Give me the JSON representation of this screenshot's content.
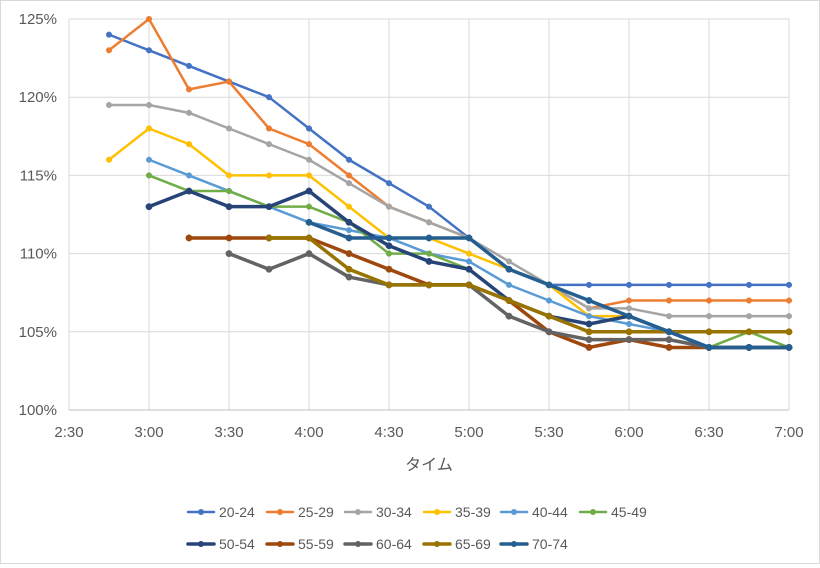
{
  "chart_data": {
    "type": "line",
    "title": "",
    "xlabel": "タイム",
    "ylabel": "",
    "x_ticks": [
      "2:30",
      "3:00",
      "3:30",
      "4:00",
      "4:30",
      "5:00",
      "5:30",
      "6:00",
      "6:30",
      "7:00"
    ],
    "y_ticks": [
      "100%",
      "105%",
      "110%",
      "115%",
      "120%",
      "125%"
    ],
    "x_range_minutes": [
      150,
      420
    ],
    "y_range_percent": [
      100,
      125
    ],
    "x_minutes": [
      165,
      180,
      195,
      210,
      225,
      240,
      255,
      270,
      285,
      300,
      315,
      330,
      345,
      360,
      375,
      390,
      405,
      420
    ],
    "grid": true,
    "legend_position": "bottom",
    "series": [
      {
        "name": "20-24",
        "color": "#4472c4",
        "line_width": 2,
        "values": [
          124,
          123,
          122,
          121,
          120,
          118,
          116,
          114.5,
          113,
          111,
          109,
          108,
          108,
          108,
          108,
          108,
          108,
          108
        ]
      },
      {
        "name": "25-29",
        "color": "#ed7d31",
        "line_width": 2,
        "values": [
          123,
          125,
          120.5,
          121,
          118,
          117,
          115,
          113,
          112,
          111,
          109,
          108,
          106.5,
          107,
          107,
          107,
          107,
          107
        ]
      },
      {
        "name": "30-34",
        "color": "#a5a5a5",
        "line_width": 2,
        "values": [
          119.5,
          119.5,
          119,
          118,
          117,
          116,
          114.5,
          113,
          112,
          111,
          109.5,
          108,
          106.5,
          106.5,
          106,
          106,
          106,
          106
        ]
      },
      {
        "name": "35-39",
        "color": "#ffc000",
        "line_width": 2,
        "values": [
          116,
          118,
          117,
          115,
          115,
          115,
          113,
          111,
          111,
          110,
          109,
          108,
          106,
          106,
          105,
          105,
          105,
          105
        ]
      },
      {
        "name": "40-44",
        "color": "#5b9bd5",
        "line_width": 2,
        "values": [
          null,
          116,
          115,
          114,
          113,
          112,
          111.5,
          111,
          110,
          109.5,
          108,
          107,
          106,
          105.5,
          105,
          104,
          104,
          104
        ]
      },
      {
        "name": "45-49",
        "color": "#70ad47",
        "line_width": 2,
        "values": [
          null,
          115,
          114,
          114,
          113,
          113,
          112,
          110,
          110,
          109,
          107,
          106,
          105,
          105,
          105,
          104,
          105,
          104
        ]
      },
      {
        "name": "50-54",
        "color": "#264478",
        "line_width": 3,
        "values": [
          null,
          113,
          114,
          113,
          113,
          114,
          112,
          110.5,
          109.5,
          109,
          107,
          106,
          105.5,
          106,
          105,
          104,
          104,
          104
        ]
      },
      {
        "name": "55-59",
        "color": "#9e480e",
        "line_width": 3,
        "values": [
          null,
          null,
          111,
          111,
          111,
          111,
          110,
          109,
          108,
          108,
          107,
          105,
          104,
          104.5,
          104,
          104,
          104,
          104
        ]
      },
      {
        "name": "60-64",
        "color": "#636363",
        "line_width": 3,
        "values": [
          null,
          null,
          null,
          110,
          109,
          110,
          108.5,
          108,
          108,
          108,
          106,
          105,
          104.5,
          104.5,
          104.5,
          104,
          104,
          104
        ]
      },
      {
        "name": "65-69",
        "color": "#997300",
        "line_width": 3,
        "values": [
          null,
          null,
          null,
          null,
          111,
          111,
          109,
          108,
          108,
          108,
          107,
          106,
          105,
          105,
          105,
          105,
          105,
          105
        ]
      },
      {
        "name": "70-74",
        "color": "#255e91",
        "line_width": 3,
        "values": [
          null,
          null,
          null,
          null,
          null,
          112,
          111,
          111,
          111,
          111,
          109,
          108,
          107,
          106,
          105,
          104,
          104,
          104
        ]
      }
    ]
  }
}
